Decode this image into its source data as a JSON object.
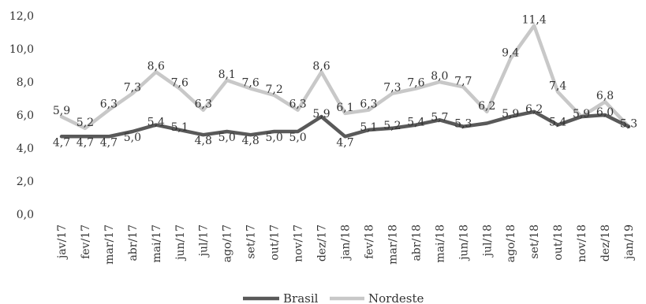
{
  "chart_data": {
    "type": "line",
    "categories": [
      "jav/17",
      "fev/17",
      "mar/17",
      "abr/17",
      "mai/17",
      "jun/17",
      "jul/17",
      "ago/17",
      "set/17",
      "out/17",
      "nov/17",
      "dez/17",
      "jan/18",
      "fev/18",
      "mar/18",
      "abr/18",
      "mai/18",
      "jun/18",
      "jul/18",
      "ago/18",
      "set/18",
      "out/18",
      "nov/18",
      "dez/18",
      "jan/19"
    ],
    "series": [
      {
        "name": "Brasil",
        "color": "#595959",
        "values": [
          4.7,
          4.7,
          4.7,
          5.0,
          5.4,
          5.1,
          4.8,
          5.0,
          4.8,
          5.0,
          5.0,
          5.9,
          4.7,
          5.1,
          5.2,
          5.4,
          5.7,
          5.3,
          5.5,
          5.9,
          6.2,
          5.4,
          5.9,
          6.0,
          5.3
        ],
        "labels": [
          "4,7",
          "4,7",
          "4,7",
          "5,0",
          "5,4",
          "5,1",
          "4,8",
          "5,0",
          "4,8",
          "5,0",
          "5,0",
          "5,9",
          "4,7",
          "5,1",
          "5,2",
          "5,4",
          "5,7",
          "5,3",
          "",
          "5,9",
          "6,2",
          "5,4",
          "5,9",
          "6,0",
          "5,3"
        ]
      },
      {
        "name": "Nordeste",
        "color": "#c8c8c8",
        "values": [
          5.9,
          5.2,
          6.3,
          7.3,
          8.6,
          7.6,
          6.3,
          8.1,
          7.6,
          7.2,
          6.3,
          8.6,
          6.1,
          6.3,
          7.3,
          7.6,
          8.0,
          7.7,
          6.2,
          9.4,
          11.4,
          7.4,
          5.9,
          6.8,
          5.3
        ],
        "labels": [
          "5,9",
          "5,2",
          "6,3",
          "7,3",
          "8,6",
          "7,6",
          "6,3",
          "8,1",
          "7,6",
          "7,2",
          "6,3",
          "8,6",
          "6,1",
          "6,3",
          "7,3",
          "7,6",
          "8,0",
          "7,7",
          "6,2",
          "9,4",
          "11,4",
          "7,4",
          "",
          "6,8",
          ""
        ]
      }
    ],
    "yticks": [
      "0,0",
      "2,0",
      "4,0",
      "6,0",
      "8,0",
      "10,0",
      "12,0"
    ],
    "ylim": [
      0,
      12
    ],
    "title": "",
    "xlabel": "",
    "ylabel": "",
    "legend_position": "bottom",
    "grid": false
  }
}
